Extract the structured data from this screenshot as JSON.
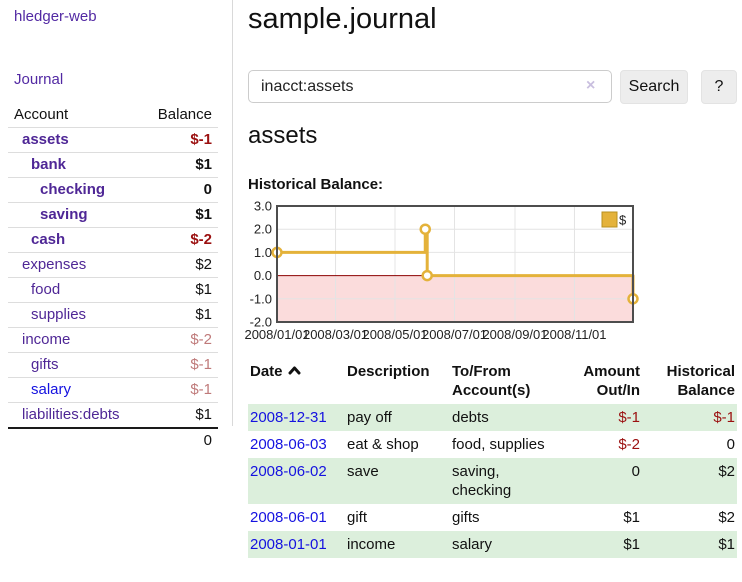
{
  "colors": {
    "purple_link": "#4f2796",
    "blue_link": "#1512e0",
    "neg_strong": "#9b1010",
    "neg_faint": "#bf7a7a",
    "row_green": "#dcefdc",
    "chart_line": "#e4b23a",
    "chart_neg_area": "#fbdcdc",
    "chart_zero_line": "#8b0000"
  },
  "sidebar": {
    "app_title": "hledger-web",
    "journal_link": "Journal",
    "table": {
      "account_header": "Account",
      "balance_header": "Balance",
      "rows": [
        {
          "name": "assets",
          "level": 1,
          "bold": true,
          "balance": "$-1",
          "neg": "strong",
          "link_color": "purple"
        },
        {
          "name": "bank",
          "level": 2,
          "bold": true,
          "balance": "$1",
          "neg": "",
          "link_color": "purple"
        },
        {
          "name": "checking",
          "level": 3,
          "bold": true,
          "balance": "0",
          "neg": "",
          "link_color": "purple"
        },
        {
          "name": "saving",
          "level": 3,
          "bold": true,
          "balance": "$1",
          "neg": "",
          "link_color": "purple"
        },
        {
          "name": "cash",
          "level": 2,
          "bold": true,
          "balance": "$-2",
          "neg": "strong",
          "link_color": "purple"
        },
        {
          "name": "expenses",
          "level": 1,
          "bold": false,
          "balance": "$2",
          "neg": "",
          "link_color": "purple"
        },
        {
          "name": "food",
          "level": 2,
          "bold": false,
          "balance": "$1",
          "neg": "",
          "link_color": "purple"
        },
        {
          "name": "supplies",
          "level": 2,
          "bold": false,
          "balance": "$1",
          "neg": "",
          "link_color": "purple"
        },
        {
          "name": "income",
          "level": 1,
          "bold": false,
          "balance": "$-2",
          "neg": "faint",
          "link_color": "purple"
        },
        {
          "name": "gifts",
          "level": 2,
          "bold": false,
          "balance": "$-1",
          "neg": "faint",
          "link_color": "purple"
        },
        {
          "name": "salary",
          "level": 2,
          "bold": false,
          "balance": "$-1",
          "neg": "faint",
          "link_color": "blue"
        },
        {
          "name": "liabilities:debts",
          "level": 1,
          "bold": false,
          "balance": "$1",
          "neg": "",
          "link_color": "purple"
        }
      ],
      "total": "0"
    }
  },
  "main": {
    "title": "sample.journal",
    "search": {
      "value": "inacct:assets",
      "clear_icon": "×",
      "button_label": "Search",
      "help_label": "?"
    },
    "account_heading": "assets",
    "chart_label": "Historical Balance:",
    "table": {
      "headers": [
        "Date",
        "Description",
        "To/From Account(s)",
        "Amount Out/In",
        "Historical Balance"
      ],
      "sort": {
        "column": "Date",
        "direction": "ascending"
      },
      "rows": [
        {
          "date": "2008-12-31",
          "description": "pay off",
          "accounts": "debts",
          "amount": "$-1",
          "balance": "$-1"
        },
        {
          "date": "2008-06-03",
          "description": "eat & shop",
          "accounts": "food, supplies",
          "amount": "$-2",
          "balance": "0"
        },
        {
          "date": "2008-06-02",
          "description": "save",
          "accounts": "saving, checking",
          "amount": "0",
          "balance": "$2"
        },
        {
          "date": "2008-06-01",
          "description": "gift",
          "accounts": "gifts",
          "amount": "$1",
          "balance": "$2"
        },
        {
          "date": "2008-01-01",
          "description": "income",
          "accounts": "salary",
          "amount": "$1",
          "balance": "$1"
        }
      ]
    }
  },
  "chart_data": {
    "type": "line",
    "interpolation": "step-after",
    "title": "Historical Balance:",
    "legend": {
      "position": "top-right",
      "label": "$"
    },
    "y_ticks": [
      "3.0",
      "2.0",
      "1.0",
      "0.0",
      "-1.0",
      "-2.0"
    ],
    "y_range": [
      -2,
      3
    ],
    "x_range_days": [
      0,
      365
    ],
    "x_ticks": [
      {
        "label": "2008/01/01",
        "day": 0
      },
      {
        "label": "2008/03/01",
        "day": 60
      },
      {
        "label": "2008/05/01",
        "day": 121
      },
      {
        "label": "2008/07/01",
        "day": 182
      },
      {
        "label": "2008/09/01",
        "day": 244
      },
      {
        "label": "2008/11/01",
        "day": 305
      }
    ],
    "series": [
      {
        "name": "$",
        "points": [
          {
            "date": "2008-01-01",
            "day": 0,
            "value": 1
          },
          {
            "date": "2008-06-01",
            "day": 152,
            "value": 2
          },
          {
            "date": "2008-06-03",
            "day": 154,
            "value": 0
          },
          {
            "date": "2008-12-31",
            "day": 365,
            "value": -1
          }
        ]
      }
    ],
    "colors": {
      "line": "#e4b23a",
      "marker_fill": "#ffffff",
      "negative_area": "#fbdcdc",
      "zero_line": "#8b0000",
      "grid": "#e4e4e4",
      "border": "#4d4d4d"
    }
  }
}
